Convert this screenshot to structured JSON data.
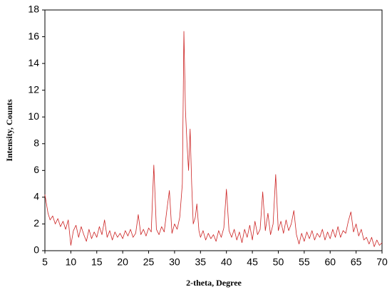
{
  "chart_data": {
    "type": "line",
    "xlabel": "2-theta, Degree",
    "ylabel": "Intensity, Counts",
    "color": "#cc2222",
    "x": [
      5,
      5.3,
      5.6,
      6,
      6.5,
      7,
      7.5,
      8,
      8.5,
      9,
      9.5,
      10,
      10.5,
      11,
      11.5,
      12,
      12.5,
      13,
      13.5,
      14,
      14.5,
      15,
      15.5,
      16,
      16.5,
      17,
      17.5,
      18,
      18.5,
      19,
      19.5,
      20,
      20.5,
      21,
      21.5,
      22,
      22.5,
      23,
      23.5,
      24,
      24.5,
      25,
      25.5,
      26,
      26.5,
      27,
      27.5,
      28,
      28.5,
      29,
      29.5,
      30,
      30.5,
      31,
      31.5,
      31.8,
      32.1,
      32.4,
      32.7,
      33,
      33.3,
      33.6,
      34,
      34.3,
      34.7,
      35,
      35.5,
      36,
      36.5,
      37,
      37.5,
      38,
      38.5,
      39,
      39.5,
      40,
      40.5,
      41,
      41.5,
      42,
      42.5,
      43,
      43.5,
      44,
      44.5,
      45,
      45.5,
      46,
      46.5,
      47,
      47.5,
      48,
      48.5,
      49,
      49.5,
      50,
      50.5,
      51,
      51.5,
      52,
      52.5,
      53,
      53.5,
      54,
      54.5,
      55,
      55.5,
      56,
      56.5,
      57,
      57.5,
      58,
      58.5,
      59,
      59.5,
      60,
      60.5,
      61,
      61.5,
      62,
      62.5,
      63,
      63.5,
      64,
      64.5,
      65,
      65.5,
      66,
      66.5,
      67,
      67.5,
      68,
      68.5,
      69,
      69.5,
      70
    ],
    "values": [
      4.2,
      3.5,
      2.8,
      2.3,
      2.6,
      2.0,
      2.4,
      1.8,
      2.2,
      1.6,
      2.3,
      0.4,
      1.5,
      1.9,
      1.0,
      1.8,
      1.2,
      0.7,
      1.6,
      0.9,
      1.4,
      1.0,
      1.8,
      1.2,
      2.3,
      1.0,
      1.5,
      0.8,
      1.4,
      1.0,
      1.3,
      0.9,
      1.5,
      1.1,
      1.6,
      1.0,
      1.3,
      2.7,
      1.2,
      1.6,
      1.1,
      1.7,
      1.4,
      6.4,
      1.6,
      1.2,
      1.8,
      1.4,
      3.0,
      4.5,
      1.3,
      2.0,
      1.6,
      2.5,
      5.0,
      16.4,
      10.5,
      8.0,
      6.0,
      9.1,
      5.0,
      2.0,
      2.5,
      3.5,
      1.5,
      1.0,
      1.5,
      0.8,
      1.3,
      0.9,
      1.2,
      0.7,
      1.5,
      1.0,
      1.7,
      4.6,
      1.5,
      1.0,
      1.6,
      0.8,
      1.4,
      0.6,
      1.6,
      1.0,
      1.9,
      0.8,
      2.2,
      1.2,
      1.6,
      4.4,
      1.5,
      2.8,
      1.2,
      2.0,
      5.7,
      1.5,
      2.2,
      1.3,
      2.3,
      1.5,
      2.0,
      3.0,
      1.2,
      0.5,
      1.3,
      0.7,
      1.4,
      0.9,
      1.5,
      0.8,
      1.3,
      1.0,
      1.6,
      0.8,
      1.4,
      0.9,
      1.6,
      1.0,
      1.8,
      1.0,
      1.5,
      1.3,
      2.2,
      2.9,
      1.4,
      2.0,
      1.1,
      1.6,
      0.8,
      1.0,
      0.5,
      1.0,
      0.3,
      0.8,
      0.4,
      0.6
    ],
    "xlim": [
      5,
      70
    ],
    "xticks": [
      5,
      10,
      15,
      20,
      25,
      30,
      35,
      40,
      45,
      50,
      55,
      60,
      65,
      70
    ],
    "ylim": [
      0,
      18
    ],
    "yticks": [
      0,
      2,
      4,
      6,
      8,
      10,
      12,
      14,
      16,
      18
    ],
    "grid": false
  }
}
